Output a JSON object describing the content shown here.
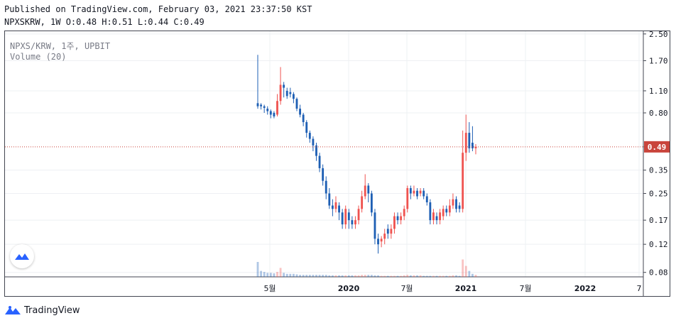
{
  "header": {
    "published": "Published on TradingView.com, February 03, 2021 23:37:50 KST",
    "ohlc": "NPXSKRW, 1W O:0.48 H:0.51 L:0.44 C:0.49"
  },
  "legend": {
    "symbol": "NPXS/KRW, 1주, UPBIT",
    "volume": "Volume (20)"
  },
  "footer": {
    "brand": "TradingView"
  },
  "colors": {
    "up": "#ef5350",
    "down": "#1e5fb4",
    "price_label_bg": "#c9443b",
    "grid": "#eef0f3",
    "axis": "#434651",
    "brand": "#2962ff"
  },
  "chart_data": {
    "type": "candlestick",
    "symbol": "NPXS/KRW",
    "interval": "1W",
    "exchange": "UPBIT",
    "y_scale": "log",
    "ylim": [
      0.075,
      2.6
    ],
    "y_ticks": [
      "2.50",
      "1.70",
      "1.10",
      "0.80",
      "0.49",
      "0.35",
      "0.25",
      "0.17",
      "0.12",
      "0.08"
    ],
    "last_price": "0.49",
    "x_ticks": [
      "5월",
      "2020",
      "7월",
      "2021",
      "7월",
      "2022",
      "7"
    ],
    "candles": [
      [
        0.88,
        0.92,
        1.85,
        0.85,
        "down",
        0.3
      ],
      [
        0.88,
        0.9,
        0.92,
        0.84,
        "down",
        0.12
      ],
      [
        0.86,
        0.88,
        0.9,
        0.8,
        "down",
        0.1
      ],
      [
        0.82,
        0.85,
        0.88,
        0.78,
        "down",
        0.08
      ],
      [
        0.78,
        0.82,
        0.84,
        0.74,
        "down",
        0.08
      ],
      [
        0.76,
        0.8,
        0.82,
        0.74,
        "down",
        0.07
      ],
      [
        0.78,
        0.95,
        1.05,
        0.76,
        "up",
        0.1
      ],
      [
        0.95,
        1.2,
        1.55,
        0.9,
        "up",
        0.18
      ],
      [
        1.15,
        1.2,
        1.25,
        1.0,
        "down",
        0.08
      ],
      [
        1.02,
        1.1,
        1.15,
        0.98,
        "down",
        0.06
      ],
      [
        1.05,
        1.08,
        1.15,
        1.0,
        "down",
        0.06
      ],
      [
        0.98,
        1.05,
        1.08,
        0.92,
        "down",
        0.06
      ],
      [
        0.85,
        0.98,
        1.0,
        0.82,
        "down",
        0.05
      ],
      [
        0.78,
        0.85,
        0.9,
        0.75,
        "down",
        0.04
      ],
      [
        0.7,
        0.78,
        0.8,
        0.66,
        "down",
        0.04
      ],
      [
        0.6,
        0.7,
        0.72,
        0.56,
        "down",
        0.04
      ],
      [
        0.55,
        0.6,
        0.62,
        0.52,
        "down",
        0.04
      ],
      [
        0.5,
        0.55,
        0.57,
        0.46,
        "down",
        0.04
      ],
      [
        0.43,
        0.5,
        0.52,
        0.4,
        "down",
        0.04
      ],
      [
        0.36,
        0.43,
        0.45,
        0.34,
        "down",
        0.04
      ],
      [
        0.3,
        0.36,
        0.38,
        0.28,
        "down",
        0.04
      ],
      [
        0.25,
        0.3,
        0.32,
        0.23,
        "down",
        0.04
      ],
      [
        0.21,
        0.25,
        0.27,
        0.2,
        "down",
        0.03
      ],
      [
        0.2,
        0.21,
        0.23,
        0.18,
        "down",
        0.03
      ],
      [
        0.2,
        0.22,
        0.24,
        0.19,
        "up",
        0.03
      ],
      [
        0.19,
        0.21,
        0.22,
        0.17,
        "down",
        0.03
      ],
      [
        0.16,
        0.19,
        0.2,
        0.15,
        "down",
        0.03
      ],
      [
        0.16,
        0.2,
        0.21,
        0.15,
        "up",
        0.03
      ],
      [
        0.17,
        0.19,
        0.2,
        0.15,
        "down",
        0.03
      ],
      [
        0.16,
        0.17,
        0.18,
        0.15,
        "down",
        0.03
      ],
      [
        0.16,
        0.17,
        0.18,
        0.15,
        "up",
        0.03
      ],
      [
        0.17,
        0.2,
        0.21,
        0.16,
        "up",
        0.03
      ],
      [
        0.2,
        0.24,
        0.26,
        0.19,
        "up",
        0.04
      ],
      [
        0.24,
        0.28,
        0.33,
        0.23,
        "up",
        0.04
      ],
      [
        0.25,
        0.28,
        0.29,
        0.22,
        "down",
        0.04
      ],
      [
        0.19,
        0.25,
        0.26,
        0.18,
        "down",
        0.04
      ],
      [
        0.13,
        0.19,
        0.2,
        0.12,
        "down",
        0.03
      ],
      [
        0.12,
        0.13,
        0.14,
        0.105,
        "down",
        0.03
      ],
      [
        0.125,
        0.13,
        0.135,
        0.115,
        "up",
        0.02
      ],
      [
        0.13,
        0.14,
        0.15,
        0.12,
        "up",
        0.02
      ],
      [
        0.14,
        0.15,
        0.16,
        0.13,
        "down",
        0.02
      ],
      [
        0.14,
        0.15,
        0.16,
        0.13,
        "up",
        0.02
      ],
      [
        0.15,
        0.18,
        0.19,
        0.14,
        "up",
        0.02
      ],
      [
        0.17,
        0.18,
        0.19,
        0.16,
        "down",
        0.02
      ],
      [
        0.17,
        0.18,
        0.19,
        0.16,
        "up",
        0.02
      ],
      [
        0.18,
        0.2,
        0.21,
        0.17,
        "up",
        0.03
      ],
      [
        0.2,
        0.27,
        0.28,
        0.19,
        "up",
        0.04
      ],
      [
        0.25,
        0.27,
        0.28,
        0.23,
        "down",
        0.03
      ],
      [
        0.25,
        0.26,
        0.28,
        0.24,
        "up",
        0.03
      ],
      [
        0.24,
        0.26,
        0.27,
        0.23,
        "down",
        0.03
      ],
      [
        0.25,
        0.26,
        0.27,
        0.24,
        "up",
        0.03
      ],
      [
        0.24,
        0.26,
        0.27,
        0.23,
        "down",
        0.02
      ],
      [
        0.22,
        0.24,
        0.25,
        0.21,
        "down",
        0.02
      ],
      [
        0.17,
        0.22,
        0.23,
        0.16,
        "down",
        0.02
      ],
      [
        0.17,
        0.19,
        0.2,
        0.16,
        "up",
        0.02
      ],
      [
        0.17,
        0.18,
        0.19,
        0.16,
        "down",
        0.02
      ],
      [
        0.17,
        0.19,
        0.2,
        0.16,
        "up",
        0.02
      ],
      [
        0.18,
        0.2,
        0.21,
        0.17,
        "up",
        0.02
      ],
      [
        0.19,
        0.2,
        0.21,
        0.18,
        "down",
        0.02
      ],
      [
        0.19,
        0.21,
        0.23,
        0.18,
        "up",
        0.02
      ],
      [
        0.21,
        0.23,
        0.25,
        0.2,
        "up",
        0.03
      ],
      [
        0.2,
        0.23,
        0.24,
        0.19,
        "down",
        0.03
      ],
      [
        0.2,
        0.21,
        0.22,
        0.19,
        "down",
        0.02
      ],
      [
        0.2,
        0.45,
        0.62,
        0.19,
        "up",
        0.35
      ],
      [
        0.45,
        0.6,
        0.78,
        0.4,
        "up",
        0.22
      ],
      [
        0.48,
        0.6,
        0.7,
        0.45,
        "down",
        0.12
      ],
      [
        0.48,
        0.52,
        0.66,
        0.46,
        "down",
        0.06
      ],
      [
        0.49,
        0.48,
        0.51,
        0.44,
        "up",
        0.04
      ]
    ],
    "volume_max": 1.0
  }
}
